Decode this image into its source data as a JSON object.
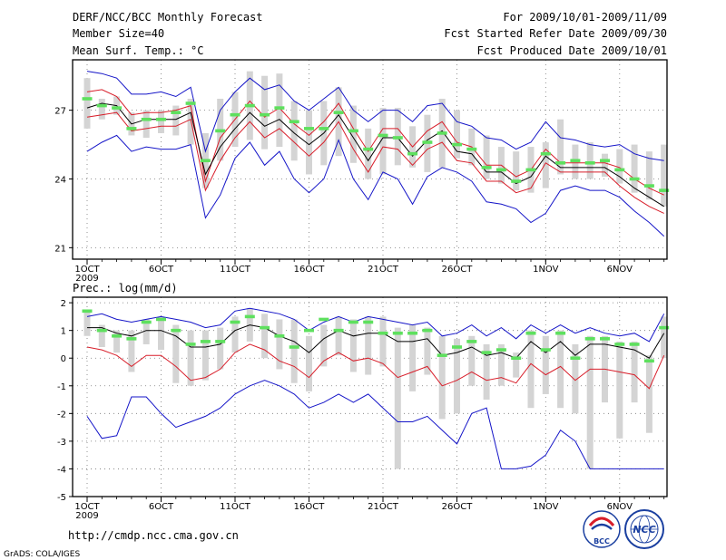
{
  "header": {
    "left": [
      "DERF/NCC/BCC Monthly Forecast",
      "Member Size=40",
      "Mean Surf. Temp.: °C"
    ],
    "right": [
      "For 2009/10/01-2009/11/09",
      "Fcst Started Refer Date 2009/09/30",
      "Fcst Produced Date 2009/10/01"
    ]
  },
  "precip_label": "Prec.: log(mm/d)",
  "url": "http://cmdp.ncc.cma.gov.cn",
  "credit": "GrADS: COLA/IGES",
  "logos": {
    "bcc": "BCC",
    "ncc": "NCC"
  },
  "colors": {
    "box": "#d4d4d4",
    "median": "#000000",
    "spread": "#d81e2a",
    "envelope": "#1515c8",
    "obs": "#5ee05e"
  },
  "chart_data": [
    {
      "type": "line",
      "title": "Mean Surf. Temp.: °C",
      "x_days": 40,
      "x_tick_labels": [
        "1OCT",
        "6OCT",
        "11OCT",
        "16OCT",
        "21OCT",
        "26OCT",
        "1NOV",
        "6NOV"
      ],
      "x_tick_days": [
        1,
        6,
        11,
        16,
        21,
        26,
        32,
        37
      ],
      "x_year": "2009",
      "ylim": [
        20.5,
        29.2
      ],
      "yticks": [
        21,
        24,
        27
      ],
      "box_low": [
        26.2,
        26.6,
        26.8,
        25.9,
        25.8,
        26.0,
        25.9,
        25.5,
        23.6,
        24.8,
        25.4,
        25.7,
        25.3,
        25.4,
        24.8,
        24.2,
        24.6,
        25.0,
        24.7,
        24.0,
        24.2,
        24.6,
        24.5,
        24.3,
        24.5,
        24.9,
        24.6,
        24.0,
        23.8,
        23.5,
        23.4,
        23.6,
        24.2,
        24.0,
        24.0,
        24.1,
        23.8,
        23.4,
        23.1,
        22.8
      ],
      "box_high": [
        28.4,
        27.5,
        27.6,
        26.9,
        27.0,
        27.0,
        27.2,
        27.5,
        26.0,
        27.5,
        27.8,
        28.7,
        28.5,
        28.6,
        27.4,
        27.0,
        27.4,
        28.0,
        27.2,
        26.2,
        27.1,
        27.1,
        26.3,
        26.8,
        27.5,
        27.0,
        26.2,
        25.9,
        25.4,
        25.2,
        25.4,
        25.6,
        26.6,
        25.5,
        25.6,
        25.1,
        25.3,
        25.5,
        25.2,
        25.5
      ],
      "obs": [
        27.5,
        27.2,
        27.1,
        26.2,
        26.6,
        26.6,
        26.9,
        27.3,
        24.8,
        26.1,
        26.8,
        27.2,
        26.8,
        27.1,
        26.5,
        26.2,
        26.2,
        26.9,
        26.1,
        25.3,
        25.9,
        25.8,
        25.1,
        25.6,
        26.0,
        25.5,
        25.3,
        24.5,
        24.4,
        23.9,
        24.4,
        25.1,
        24.7,
        24.8,
        24.7,
        24.8,
        24.4,
        24.0,
        23.7,
        23.5
      ],
      "series": [
        {
          "name": "max",
          "values": [
            28.7,
            28.6,
            28.4,
            27.7,
            27.7,
            27.8,
            27.6,
            28.0,
            25.2,
            27.0,
            27.8,
            28.4,
            27.9,
            28.1,
            27.4,
            27.0,
            27.5,
            28.0,
            27.0,
            26.5,
            27.0,
            27.0,
            26.5,
            27.2,
            27.3,
            26.5,
            26.3,
            25.8,
            25.7,
            25.3,
            25.6,
            26.5,
            25.8,
            25.7,
            25.5,
            25.4,
            25.5,
            25.1,
            24.9,
            24.8
          ]
        },
        {
          "name": "upper",
          "values": [
            27.8,
            27.9,
            27.6,
            26.8,
            26.9,
            26.9,
            27.0,
            27.2,
            23.9,
            25.8,
            26.6,
            27.4,
            26.7,
            27.1,
            26.4,
            25.9,
            26.5,
            27.3,
            26.2,
            25.2,
            26.2,
            26.2,
            25.4,
            26.1,
            26.5,
            25.6,
            25.4,
            24.6,
            24.6,
            24.1,
            24.4,
            25.3,
            24.7,
            24.7,
            24.7,
            24.7,
            24.5,
            24.0,
            23.6,
            23.3
          ]
        },
        {
          "name": "median",
          "values": [
            27.1,
            27.3,
            27.2,
            26.4,
            26.6,
            26.6,
            26.6,
            26.9,
            24.2,
            25.4,
            26.2,
            26.9,
            26.3,
            26.6,
            26.0,
            25.5,
            26.0,
            26.8,
            25.8,
            24.8,
            25.8,
            25.8,
            25.0,
            25.7,
            26.1,
            25.2,
            25.1,
            24.3,
            24.3,
            23.8,
            24.1,
            25.0,
            24.5,
            24.5,
            24.5,
            24.5,
            24.1,
            23.6,
            23.2,
            22.8
          ]
        },
        {
          "name": "lower",
          "values": [
            26.7,
            26.8,
            26.9,
            26.1,
            26.2,
            26.3,
            26.3,
            26.6,
            23.5,
            24.8,
            25.8,
            26.5,
            25.8,
            26.2,
            25.6,
            25.0,
            25.6,
            26.5,
            25.3,
            24.3,
            25.4,
            25.3,
            24.6,
            25.3,
            25.6,
            24.8,
            24.7,
            23.9,
            23.9,
            23.4,
            23.6,
            24.7,
            24.3,
            24.3,
            24.3,
            24.3,
            23.7,
            23.2,
            22.8,
            22.5
          ]
        },
        {
          "name": "min",
          "values": [
            25.2,
            25.6,
            25.9,
            25.2,
            25.4,
            25.3,
            25.3,
            25.5,
            22.3,
            23.3,
            24.9,
            25.6,
            24.6,
            25.2,
            24.0,
            23.4,
            24.0,
            25.7,
            24.0,
            23.1,
            24.3,
            24.0,
            22.9,
            24.1,
            24.5,
            24.3,
            23.9,
            23.0,
            22.9,
            22.7,
            22.1,
            22.5,
            23.5,
            23.7,
            23.5,
            23.5,
            23.2,
            22.6,
            22.1,
            21.5
          ]
        }
      ]
    },
    {
      "type": "line",
      "title": "Prec.: log(mm/d)",
      "x_days": 40,
      "x_tick_labels": [
        "1OCT",
        "6OCT",
        "11OCT",
        "16OCT",
        "21OCT",
        "26OCT",
        "1NOV",
        "6NOV"
      ],
      "x_tick_days": [
        1,
        6,
        11,
        16,
        21,
        26,
        32,
        37
      ],
      "x_year": "2009",
      "ylim": [
        -5,
        2.2
      ],
      "yticks": [
        -5,
        -4,
        -3,
        -2,
        -1,
        0,
        1,
        2
      ],
      "box_low": [
        0.8,
        0.4,
        0.2,
        -0.5,
        0.5,
        0.3,
        -0.9,
        -1.0,
        -0.8,
        -0.4,
        0.2,
        0.6,
        0.0,
        -0.4,
        -0.9,
        -1.2,
        -0.3,
        0.1,
        -0.5,
        -0.6,
        -0.3,
        -4.0,
        -1.2,
        -0.6,
        -2.2,
        -2.0,
        -1.0,
        -1.5,
        -1.0,
        -0.7,
        -1.8,
        -1.3,
        -1.8,
        -2.0,
        -4.0,
        -1.6,
        -2.9,
        -1.6,
        -2.7,
        0.0
      ],
      "box_high": [
        1.7,
        1.2,
        1.0,
        1.0,
        1.4,
        1.5,
        1.2,
        1.0,
        1.0,
        1.1,
        1.5,
        1.8,
        1.6,
        1.4,
        1.4,
        0.8,
        1.2,
        1.5,
        1.4,
        1.5,
        1.5,
        1.1,
        1.2,
        1.1,
        0.8,
        0.7,
        0.8,
        0.5,
        0.5,
        0.2,
        1.0,
        0.8,
        1.0,
        0.5,
        0.8,
        0.8,
        0.6,
        0.6,
        0.1,
        1.5
      ],
      "obs": [
        1.7,
        1.0,
        0.8,
        0.7,
        1.3,
        1.4,
        1.0,
        0.5,
        0.6,
        0.6,
        1.3,
        1.5,
        1.1,
        0.8,
        0.4,
        1.0,
        1.4,
        1.0,
        1.3,
        1.3,
        0.9,
        0.9,
        0.9,
        1.0,
        0.1,
        0.4,
        0.6,
        0.2,
        0.3,
        0.0,
        0.9,
        0.3,
        0.9,
        0.0,
        0.7,
        0.7,
        0.5,
        0.5,
        -0.1,
        1.1
      ],
      "series": [
        {
          "name": "max",
          "values": [
            1.5,
            1.6,
            1.4,
            1.3,
            1.4,
            1.5,
            1.4,
            1.3,
            1.1,
            1.2,
            1.7,
            1.8,
            1.7,
            1.6,
            1.4,
            1.0,
            1.3,
            1.5,
            1.3,
            1.5,
            1.4,
            1.3,
            1.2,
            1.3,
            0.8,
            0.9,
            1.2,
            0.8,
            1.1,
            0.7,
            1.2,
            0.9,
            1.2,
            0.9,
            1.1,
            0.9,
            0.8,
            0.9,
            0.6,
            1.6
          ]
        },
        {
          "name": "median",
          "values": [
            1.1,
            1.1,
            0.9,
            0.8,
            1.0,
            1.0,
            0.8,
            0.4,
            0.4,
            0.5,
            1.0,
            1.2,
            1.1,
            0.8,
            0.6,
            0.2,
            0.7,
            1.0,
            0.8,
            0.9,
            0.9,
            0.6,
            0.6,
            0.7,
            0.1,
            0.2,
            0.4,
            0.1,
            0.2,
            0.0,
            0.6,
            0.2,
            0.6,
            0.1,
            0.5,
            0.5,
            0.4,
            0.3,
            0.0,
            0.9
          ]
        },
        {
          "name": "lower",
          "values": [
            0.4,
            0.3,
            0.1,
            -0.3,
            0.1,
            0.1,
            -0.3,
            -0.8,
            -0.7,
            -0.4,
            0.2,
            0.5,
            0.3,
            -0.1,
            -0.3,
            -0.7,
            -0.1,
            0.2,
            -0.1,
            0.0,
            -0.2,
            -0.7,
            -0.5,
            -0.3,
            -1.0,
            -0.8,
            -0.5,
            -0.8,
            -0.7,
            -0.9,
            -0.2,
            -0.6,
            -0.3,
            -0.8,
            -0.4,
            -0.4,
            -0.5,
            -0.6,
            -1.1,
            0.1
          ]
        },
        {
          "name": "min",
          "values": [
            -2.1,
            -2.9,
            -2.8,
            -1.4,
            -1.4,
            -2.0,
            -2.5,
            -2.3,
            -2.1,
            -1.8,
            -1.3,
            -1.0,
            -0.8,
            -1.0,
            -1.3,
            -1.8,
            -1.6,
            -1.3,
            -1.6,
            -1.3,
            -1.8,
            -2.3,
            -2.3,
            -2.1,
            -2.6,
            -3.1,
            -2.0,
            -1.8,
            -4.0,
            -4.0,
            -3.9,
            -3.5,
            -2.6,
            -3.0,
            -4.0,
            -4.0,
            -4.0,
            -4.0,
            -4.0,
            -4.0
          ]
        }
      ]
    }
  ]
}
